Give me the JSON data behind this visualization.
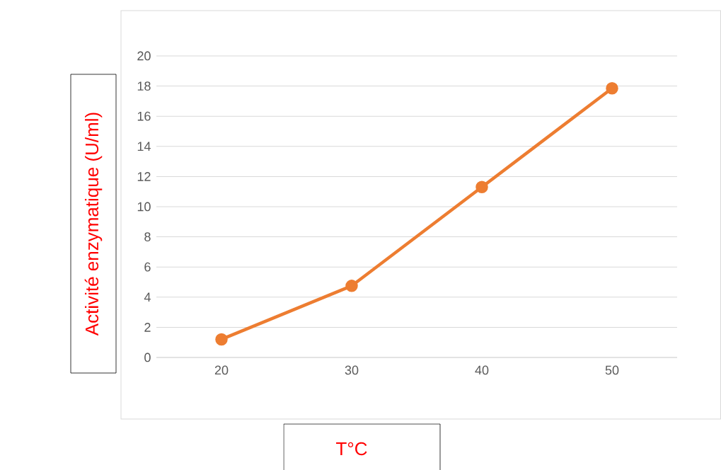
{
  "chart_data": {
    "type": "line",
    "xlabel": "T°C",
    "ylabel": "Activité enzymatique (U/ml)",
    "categories": [
      "20",
      "30",
      "40",
      "50"
    ],
    "series": [
      {
        "color": "#ed7d31",
        "values": [
          1.2,
          4.75,
          11.3,
          17.85
        ]
      }
    ],
    "ylim": [
      0,
      20
    ],
    "yticks": [
      0,
      2,
      4,
      6,
      8,
      10,
      12,
      14,
      16,
      18,
      20
    ],
    "grid": "y",
    "marker": "circle",
    "line_style": "solid"
  }
}
